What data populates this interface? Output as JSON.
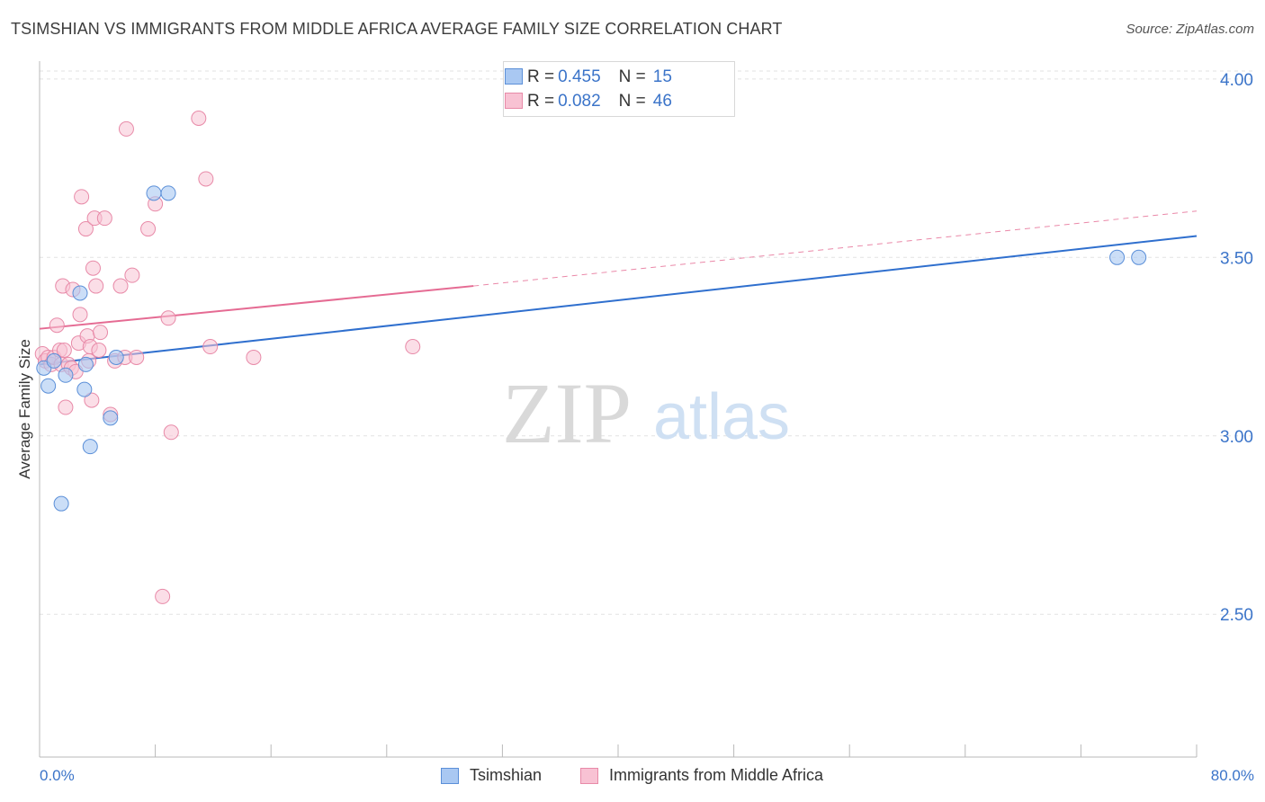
{
  "header": {
    "title": "TSIMSHIAN VS IMMIGRANTS FROM MIDDLE AFRICA AVERAGE FAMILY SIZE CORRELATION CHART",
    "source": "Source: ZipAtlas.com"
  },
  "watermark": {
    "zip": "ZIP",
    "atlas": "atlas"
  },
  "legend": {
    "rows": [
      {
        "r_label": "R = ",
        "r_value": "0.455",
        "n_label": "N = ",
        "n_value": "15"
      },
      {
        "r_label": "R = ",
        "r_value": "0.082",
        "n_label": "N = ",
        "n_value": "46"
      }
    ]
  },
  "chart_data": {
    "type": "scatter",
    "title": "TSIMSHIAN VS IMMIGRANTS FROM MIDDLE AFRICA AVERAGE FAMILY SIZE CORRELATION CHART",
    "xlabel": "",
    "ylabel": "Average Family Size",
    "xlim": [
      0,
      80
    ],
    "ylim": [
      2.1,
      4.05
    ],
    "x_tick_labels": [
      "0.0%",
      "80.0%"
    ],
    "y_ticks": [
      2.5,
      3.0,
      3.5,
      4.0
    ],
    "y_tick_labels": [
      "2.50",
      "3.00",
      "3.50",
      "4.00"
    ],
    "grid": true,
    "colors": {
      "tsimshian_fill": "#a9c8f2",
      "tsimshian_stroke": "#5b8fd8",
      "tsimshian_line": "#2f6fce",
      "africa_fill": "#f8c2d3",
      "africa_stroke": "#e88aa8",
      "africa_line": "#e56b93",
      "axis_label": "#3b74c9"
    },
    "series": [
      {
        "name": "Tsimshian",
        "points": [
          [
            0.3,
            3.19
          ],
          [
            0.6,
            3.14
          ],
          [
            1.0,
            3.21
          ],
          [
            1.5,
            2.81
          ],
          [
            1.8,
            3.17
          ],
          [
            2.8,
            3.4
          ],
          [
            3.1,
            3.13
          ],
          [
            3.2,
            3.2
          ],
          [
            3.5,
            2.97
          ],
          [
            4.9,
            3.05
          ],
          [
            5.3,
            3.22
          ],
          [
            7.9,
            3.68
          ],
          [
            8.9,
            3.68
          ],
          [
            74.5,
            3.5
          ],
          [
            76.0,
            3.5
          ]
        ],
        "trend": {
          "x": [
            0,
            80
          ],
          "y": [
            3.2,
            3.56
          ],
          "style": "solid"
        }
      },
      {
        "name": "Immigrants from Middle Africa",
        "points": [
          [
            0.2,
            3.23
          ],
          [
            0.4,
            3.21
          ],
          [
            0.6,
            3.22
          ],
          [
            0.8,
            3.2
          ],
          [
            1.0,
            3.22
          ],
          [
            1.2,
            3.31
          ],
          [
            1.4,
            3.24
          ],
          [
            1.5,
            3.2
          ],
          [
            1.6,
            3.42
          ],
          [
            1.7,
            3.24
          ],
          [
            1.8,
            3.08
          ],
          [
            2.0,
            3.2
          ],
          [
            2.2,
            3.19
          ],
          [
            2.3,
            3.41
          ],
          [
            2.5,
            3.18
          ],
          [
            2.7,
            3.26
          ],
          [
            2.8,
            3.34
          ],
          [
            2.9,
            3.67
          ],
          [
            3.2,
            3.58
          ],
          [
            3.3,
            3.28
          ],
          [
            3.4,
            3.21
          ],
          [
            3.5,
            3.25
          ],
          [
            3.6,
            3.1
          ],
          [
            3.7,
            3.47
          ],
          [
            3.8,
            3.61
          ],
          [
            3.9,
            3.42
          ],
          [
            4.1,
            3.24
          ],
          [
            4.2,
            3.29
          ],
          [
            4.5,
            3.61
          ],
          [
            4.9,
            3.06
          ],
          [
            5.2,
            3.21
          ],
          [
            5.6,
            3.42
          ],
          [
            5.9,
            3.22
          ],
          [
            6.0,
            3.86
          ],
          [
            6.4,
            3.45
          ],
          [
            6.7,
            3.22
          ],
          [
            7.5,
            3.58
          ],
          [
            8.0,
            3.65
          ],
          [
            8.5,
            2.55
          ],
          [
            8.9,
            3.33
          ],
          [
            9.1,
            3.01
          ],
          [
            11.0,
            3.89
          ],
          [
            11.5,
            3.72
          ],
          [
            11.8,
            3.25
          ],
          [
            14.8,
            3.22
          ],
          [
            25.8,
            3.25
          ]
        ],
        "trend": {
          "x": [
            0,
            30
          ],
          "y": [
            3.3,
            3.42
          ],
          "style": "solid"
        },
        "trend_extension": {
          "x": [
            30,
            80
          ],
          "y": [
            3.42,
            3.63
          ],
          "style": "dashed"
        }
      }
    ],
    "legend": [
      {
        "label": "Tsimshian"
      },
      {
        "label": "Immigrants from Middle Africa"
      }
    ]
  }
}
